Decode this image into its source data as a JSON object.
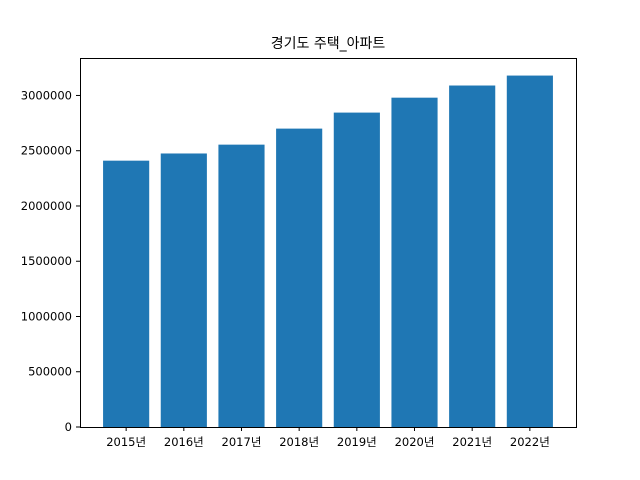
{
  "chart_data": {
    "type": "bar",
    "title": "경기도 주택_아파트",
    "xlabel": "",
    "ylabel": "",
    "categories": [
      "2015년",
      "2016년",
      "2017년",
      "2018년",
      "2019년",
      "2020년",
      "2021년",
      "2022년"
    ],
    "values": [
      2410000,
      2475000,
      2555000,
      2700000,
      2845000,
      2980000,
      3090000,
      3180000
    ],
    "ylim": [
      0,
      3339000
    ],
    "yticks": [
      0,
      500000,
      1000000,
      1500000,
      2000000,
      2500000,
      3000000
    ],
    "ytick_labels": [
      "0",
      "500000",
      "1000000",
      "1500000",
      "2000000",
      "2500000",
      "3000000"
    ],
    "bar_color": "#1f77b4",
    "grid": false,
    "legend": "none"
  }
}
